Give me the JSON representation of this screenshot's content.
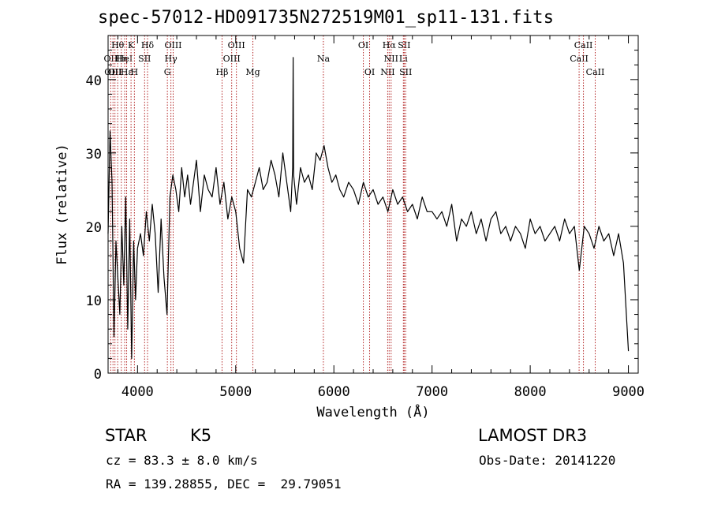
{
  "chart_data": {
    "type": "line",
    "title": "spec-57012-HD091735N272519M01_sp11-131.fits",
    "xlabel": "Wavelength (Å)",
    "ylabel": "Flux (relative)",
    "xlim": [
      3700,
      9100
    ],
    "ylim": [
      0,
      46
    ],
    "xticks": [
      4000,
      5000,
      6000,
      7000,
      8000,
      9000
    ],
    "xtick_labels": [
      "4000",
      "5000",
      "6000",
      "7000",
      "8000",
      "9000"
    ],
    "yticks": [
      0,
      10,
      20,
      30,
      40
    ],
    "ytick_labels": [
      "0",
      "10",
      "20",
      "30",
      "40"
    ],
    "line_color": "#000000",
    "marker_color": "#b22222",
    "series": [
      {
        "name": "spectrum",
        "x": [
          3700,
          3720,
          3740,
          3760,
          3780,
          3800,
          3820,
          3840,
          3860,
          3880,
          3900,
          3920,
          3940,
          3960,
          3980,
          4000,
          4030,
          4060,
          4090,
          4120,
          4150,
          4180,
          4210,
          4240,
          4270,
          4300,
          4330,
          4360,
          4390,
          4420,
          4450,
          4480,
          4510,
          4540,
          4570,
          4600,
          4640,
          4680,
          4720,
          4760,
          4800,
          4840,
          4880,
          4920,
          4960,
          5000,
          5040,
          5080,
          5120,
          5160,
          5200,
          5240,
          5280,
          5320,
          5360,
          5400,
          5440,
          5480,
          5520,
          5560,
          5580,
          5585,
          5590,
          5620,
          5660,
          5700,
          5740,
          5780,
          5820,
          5860,
          5900,
          5940,
          5980,
          6020,
          6060,
          6100,
          6150,
          6200,
          6250,
          6300,
          6350,
          6400,
          6450,
          6500,
          6550,
          6600,
          6650,
          6700,
          6750,
          6800,
          6850,
          6900,
          6950,
          7000,
          7050,
          7100,
          7150,
          7200,
          7250,
          7300,
          7350,
          7400,
          7450,
          7500,
          7550,
          7600,
          7650,
          7700,
          7750,
          7800,
          7850,
          7900,
          7950,
          8000,
          8050,
          8100,
          8150,
          8200,
          8250,
          8300,
          8350,
          8400,
          8450,
          8500,
          8550,
          8600,
          8650,
          8700,
          8750,
          8800,
          8850,
          8900,
          8950,
          9000
        ],
        "y": [
          19,
          33,
          26,
          5,
          18,
          13,
          8,
          20,
          12,
          24,
          6,
          21,
          2,
          18,
          10,
          17,
          19,
          16,
          22,
          18,
          23,
          19,
          11,
          21,
          13,
          8,
          24,
          27,
          25,
          22,
          28,
          24,
          27,
          23,
          26,
          29,
          22,
          27,
          25,
          24,
          28,
          23,
          26,
          21,
          24,
          22,
          17,
          15,
          25,
          24,
          26,
          28,
          25,
          26,
          29,
          27,
          24,
          30,
          26,
          22,
          28,
          43,
          27,
          23,
          28,
          26,
          27,
          25,
          30,
          29,
          31,
          28,
          26,
          27,
          25,
          24,
          26,
          25,
          23,
          26,
          24,
          25,
          23,
          24,
          22,
          25,
          23,
          24,
          22,
          23,
          21,
          24,
          22,
          22,
          21,
          22,
          20,
          23,
          18,
          21,
          20,
          22,
          19,
          21,
          18,
          21,
          22,
          19,
          20,
          18,
          20,
          19,
          17,
          21,
          19,
          20,
          18,
          19,
          20,
          18,
          21,
          19,
          20,
          14,
          20,
          19,
          17,
          20,
          18,
          19,
          16,
          19,
          15,
          3
        ]
      }
    ],
    "line_markers": [
      {
        "wavelength": 3727,
        "row": 1,
        "label": "OII"
      },
      {
        "wavelength": 3750,
        "row": 2,
        "label": "OIII"
      },
      {
        "wavelength": 3770,
        "row": 2,
        "label": "OII"
      },
      {
        "wavelength": 3798,
        "row": 0,
        "label": "Hθ"
      },
      {
        "wavelength": 3835,
        "row": 1,
        "label": "Hη"
      },
      {
        "wavelength": 3869,
        "row": 1,
        "label": "HeI"
      },
      {
        "wavelength": 3889,
        "row": 2,
        "label": "Hε"
      },
      {
        "wavelength": 3934,
        "row": 0,
        "label": "K"
      },
      {
        "wavelength": 3968,
        "row": 2,
        "label": "H"
      },
      {
        "wavelength": 4072,
        "row": 1,
        "label": "SII"
      },
      {
        "wavelength": 4102,
        "row": 0,
        "label": "Hδ"
      },
      {
        "wavelength": 4304,
        "row": 2,
        "label": "G"
      },
      {
        "wavelength": 4340,
        "row": 1,
        "label": "Hγ"
      },
      {
        "wavelength": 4363,
        "row": 0,
        "label": "OIII"
      },
      {
        "wavelength": 4861,
        "row": 2,
        "label": "Hβ"
      },
      {
        "wavelength": 4959,
        "row": 1,
        "label": "OIII"
      },
      {
        "wavelength": 5007,
        "row": 0,
        "label": "OIII"
      },
      {
        "wavelength": 5175,
        "row": 2,
        "label": "Mg"
      },
      {
        "wavelength": 5893,
        "row": 1,
        "label": "Na"
      },
      {
        "wavelength": 6300,
        "row": 0,
        "label": "OI"
      },
      {
        "wavelength": 6364,
        "row": 2,
        "label": "OI"
      },
      {
        "wavelength": 6548,
        "row": 2,
        "label": "NII"
      },
      {
        "wavelength": 6563,
        "row": 0,
        "label": "Hα"
      },
      {
        "wavelength": 6583,
        "row": 1,
        "label": "NII"
      },
      {
        "wavelength": 6708,
        "row": 1,
        "label": "Li"
      },
      {
        "wavelength": 6716,
        "row": 0,
        "label": "SII"
      },
      {
        "wavelength": 6731,
        "row": 2,
        "label": "SII"
      },
      {
        "wavelength": 8498,
        "row": 1,
        "label": "CaII"
      },
      {
        "wavelength": 8542,
        "row": 0,
        "label": "CaII"
      },
      {
        "wavelength": 8662,
        "row": 2,
        "label": "CaII"
      }
    ]
  },
  "info": {
    "object_class": "STAR",
    "subclass": "K5",
    "survey": "LAMOST DR3",
    "cz": "cz = 83.3 ± 8.0 km/s",
    "obs_date": "Obs-Date: 20141220",
    "coords": "RA = 139.28855, DEC =  29.79051"
  }
}
